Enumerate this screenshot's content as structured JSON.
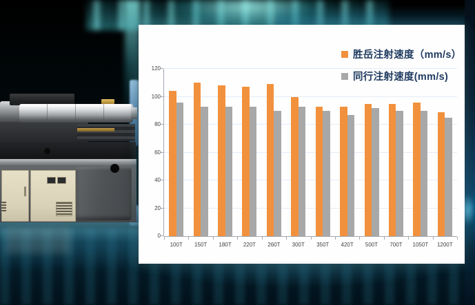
{
  "scene": {
    "machine_image": "injection-molding-machine-photo",
    "background_style": "dark teal glow with cyan light streaks",
    "accent_colors": {
      "cyan_glow": "#7fe6e6",
      "deep_teal": "#0b3144"
    }
  },
  "chart_data": {
    "type": "bar",
    "title": "",
    "xlabel": "",
    "ylabel": "",
    "categories": [
      "100T",
      "150T",
      "180T",
      "220T",
      "260T",
      "300T",
      "350T",
      "420T",
      "500T",
      "700T",
      "1050T",
      "1200T"
    ],
    "series": [
      {
        "name": "胜岳注射速度（mm/s）",
        "color": "#F2913D",
        "values": [
          104,
          110,
          108,
          107,
          109,
          100,
          93,
          93,
          95,
          95,
          96,
          89
        ]
      },
      {
        "name": "同行注射速度(mm/s)",
        "color": "#A8A8A8",
        "values": [
          96,
          93,
          93,
          93,
          90,
          93,
          90,
          87,
          92,
          90,
          90,
          85
        ]
      }
    ],
    "ylim": [
      0,
      120
    ],
    "yticks": [
      0,
      20,
      40,
      60,
      80,
      100,
      120
    ],
    "grid": true,
    "legend_position": "top-right",
    "gridline_color": "#e4ecf7",
    "axis_color": "#a2a8af",
    "tick_label_color": "#3f3f3f",
    "legend_text_color": "#1e3a5f"
  }
}
